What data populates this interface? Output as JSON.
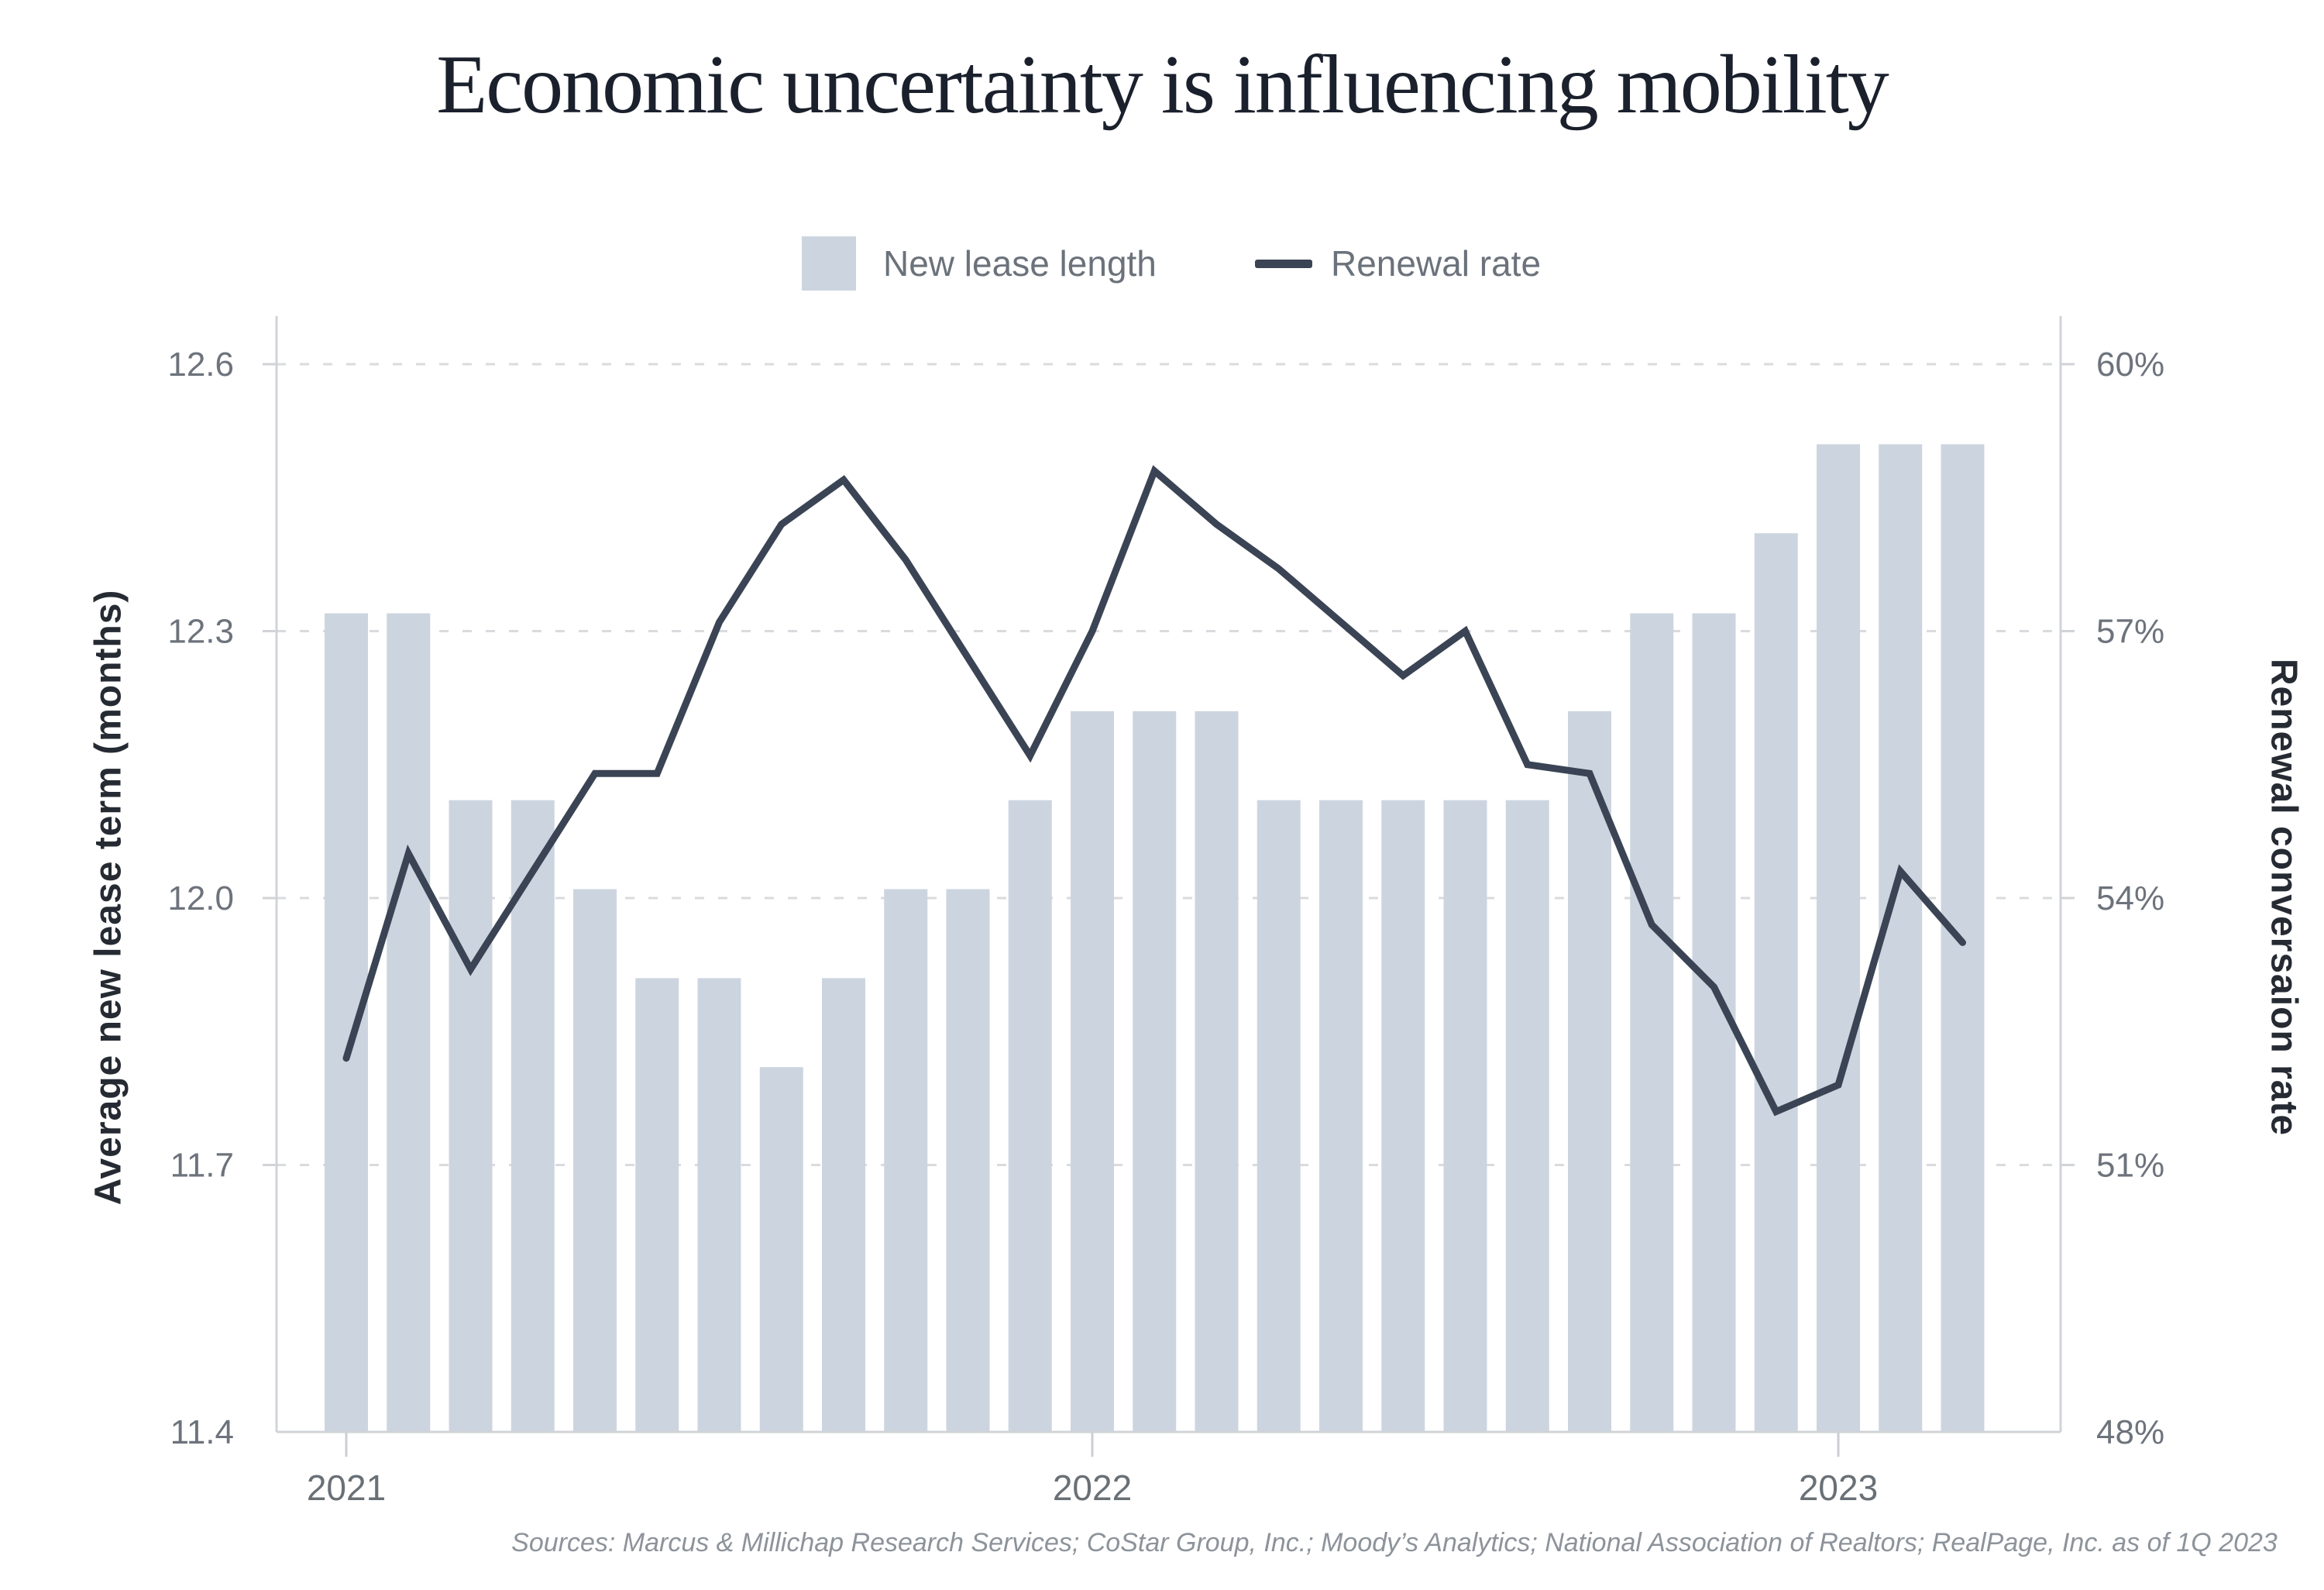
{
  "title": "Economic uncertainty is influencing mobility",
  "legend": {
    "bar_label": "New lease length",
    "line_label": "Renewal rate"
  },
  "source": "Sources: Marcus & Millichap Research Services; CoStar Group, Inc.; Moody’s Analytics; National Association of Realtors; RealPage, Inc. as of 1Q 2023",
  "colors": {
    "bar": "#ccd5df",
    "line": "#3a4454",
    "grid": "#d9dbde",
    "axis": "#d0d3d7",
    "tick_text": "#6d737c",
    "year_text": "#697076",
    "title_text": "#1a202c",
    "legend_text": "#6b727b",
    "axis_title_text": "#262b33",
    "source_text": "#8d939b"
  },
  "chart_data": {
    "type": "bar+line",
    "title": "Economic uncertainty is influencing mobility",
    "months": [
      "Jan 2021",
      "Feb 2021",
      "Mar 2021",
      "Apr 2021",
      "May 2021",
      "Jun 2021",
      "Jul 2021",
      "Aug 2021",
      "Sep 2021",
      "Oct 2021",
      "Nov 2021",
      "Dec 2021",
      "Jan 2022",
      "Feb 2022",
      "Mar 2022",
      "Apr 2022",
      "May 2022",
      "Jun 2022",
      "Jul 2022",
      "Aug 2022",
      "Sep 2022",
      "Oct 2022",
      "Nov 2022",
      "Dec 2022",
      "Jan 2023",
      "Feb 2023",
      "Mar 2023"
    ],
    "series": [
      {
        "name": "New lease length",
        "type": "bar",
        "axis": "left",
        "values": [
          12.32,
          12.32,
          12.11,
          12.11,
          12.01,
          11.91,
          11.91,
          11.81,
          11.91,
          12.01,
          12.01,
          12.11,
          12.21,
          12.21,
          12.21,
          12.11,
          12.11,
          12.11,
          12.11,
          12.11,
          12.21,
          12.32,
          12.32,
          12.41,
          12.51,
          12.51,
          12.51
        ]
      },
      {
        "name": "Renewal rate",
        "type": "line",
        "axis": "right",
        "values": [
          52.2,
          54.5,
          53.2,
          54.3,
          55.4,
          55.4,
          57.1,
          58.2,
          58.7,
          57.8,
          56.7,
          55.6,
          57.0,
          58.8,
          58.2,
          57.7,
          57.1,
          56.5,
          57.0,
          55.5,
          55.4,
          53.7,
          53.0,
          51.6,
          51.9,
          54.3,
          53.5
        ]
      }
    ],
    "left_axis": {
      "label": "Average new lease term (months)",
      "ticks": [
        12.6,
        12.3,
        12.0,
        11.7,
        11.4
      ],
      "range": [
        11.4,
        12.6
      ]
    },
    "right_axis": {
      "label": "Renewal conversaion rate",
      "ticks": [
        "60%",
        "57%",
        "54%",
        "51%",
        "48%"
      ],
      "range": [
        48,
        60
      ]
    },
    "x_ticks": [
      {
        "label": "2021",
        "index": 0
      },
      {
        "label": "2022",
        "index": 12
      },
      {
        "label": "2023",
        "index": 24
      }
    ],
    "grid": "horizontal-dashed",
    "legend_position": "top-center"
  }
}
